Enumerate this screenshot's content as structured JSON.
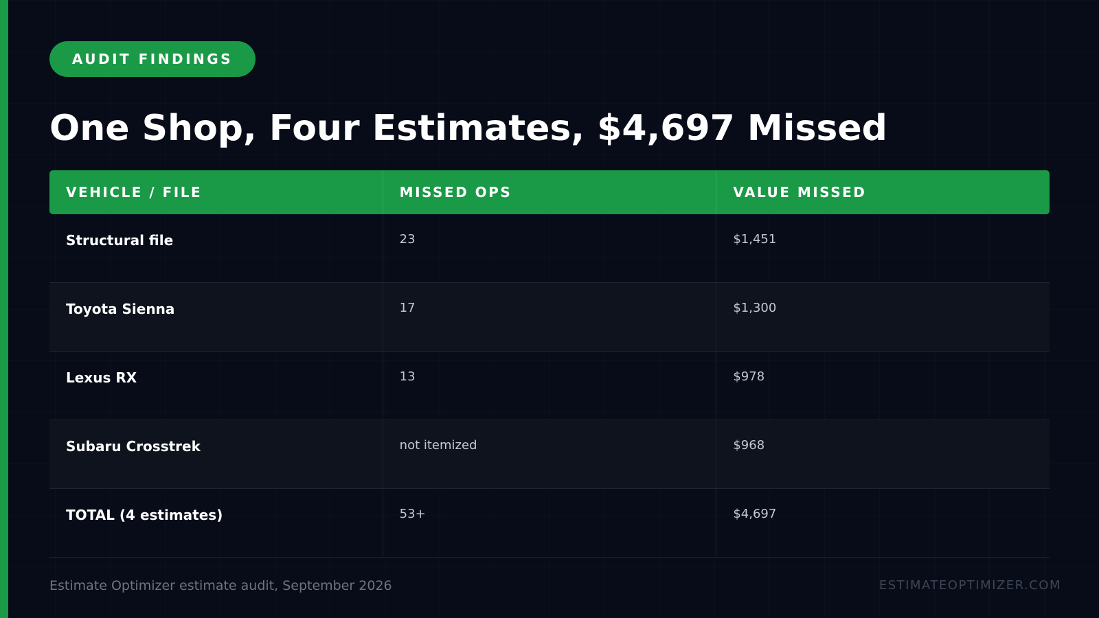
{
  "colors": {
    "accent": "#1a9a46",
    "background": "#070c18",
    "row_alt": "#0e131d"
  },
  "badge": {
    "label": "AUDIT FINDINGS"
  },
  "title": "One Shop, Four Estimates, $4,697 Missed",
  "table": {
    "headers": [
      "VEHICLE / FILE",
      "MISSED OPS",
      "VALUE MISSED"
    ],
    "rows": [
      {
        "vehicle": "Structural file",
        "missed_ops": "23",
        "value_missed": "$1,451"
      },
      {
        "vehicle": "Toyota Sienna",
        "missed_ops": "17",
        "value_missed": "$1,300"
      },
      {
        "vehicle": "Lexus RX",
        "missed_ops": "13",
        "value_missed": "$978"
      },
      {
        "vehicle": "Subaru Crosstrek",
        "missed_ops": "not itemized",
        "value_missed": "$968"
      },
      {
        "vehicle": "TOTAL (4 estimates)",
        "missed_ops": "53+",
        "value_missed": "$4,697"
      }
    ]
  },
  "footer": {
    "source": "Estimate Optimizer estimate audit, September 2026",
    "site": "ESTIMATEOPTIMIZER.COM"
  }
}
